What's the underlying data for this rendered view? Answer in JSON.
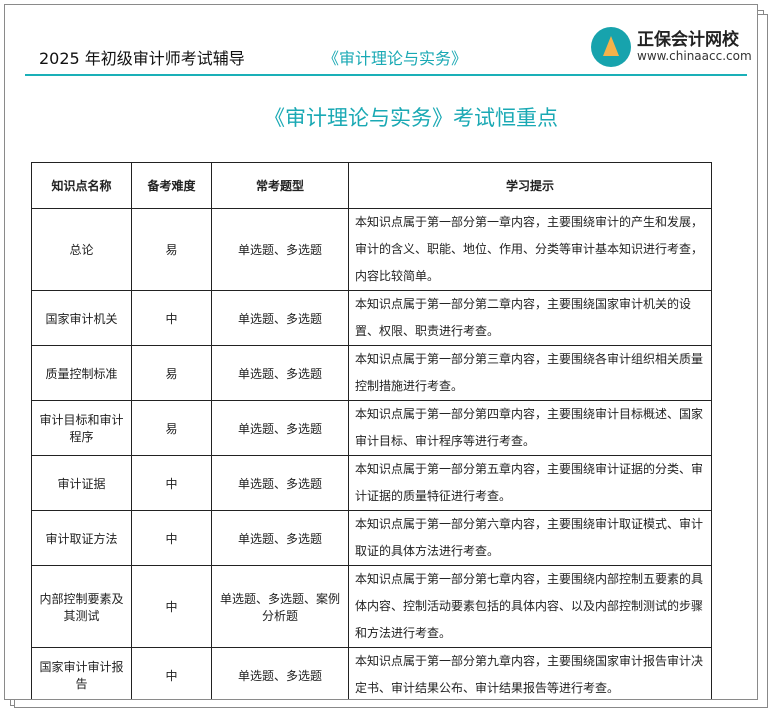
{
  "header": {
    "left": "2025 年初级审计师考试辅导",
    "center": "《审计理论与实务》",
    "logo_name": "正保会计网校",
    "logo_url": "www.chinaacc.com"
  },
  "title": "《审计理论与实务》考试恒重点",
  "table": {
    "headers": [
      "知识点名称",
      "备考难度",
      "常考题型",
      "学习提示"
    ],
    "rows": [
      {
        "name": "总论",
        "level": "易",
        "type": "单选题、多选题",
        "tip": "本知识点属于第一部分第一章内容，主要围绕审计的产生和发展，审计的含义、职能、地位、作用、分类等审计基本知识进行考查，内容比较简单。"
      },
      {
        "name": "国家审计机关",
        "level": "中",
        "type": "单选题、多选题",
        "tip": "本知识点属于第一部分第二章内容，主要围绕国家审计机关的设置、权限、职责进行考查。"
      },
      {
        "name": "质量控制标准",
        "level": "易",
        "type": "单选题、多选题",
        "tip": "本知识点属于第一部分第三章内容，主要围绕各审计组织相关质量控制措施进行考查。"
      },
      {
        "name": "审计目标和审计程序",
        "level": "易",
        "type": "单选题、多选题",
        "tip": "本知识点属于第一部分第四章内容，主要围绕审计目标概述、国家审计目标、审计程序等进行考查。"
      },
      {
        "name": "审计证据",
        "level": "中",
        "type": "单选题、多选题",
        "tip": "本知识点属于第一部分第五章内容，主要围绕审计证据的分类、审计证据的质量特征进行考查。"
      },
      {
        "name": "审计取证方法",
        "level": "中",
        "type": "单选题、多选题",
        "tip": "本知识点属于第一部分第六章内容，主要围绕审计取证模式、审计取证的具体方法进行考查。"
      },
      {
        "name": "内部控制要素及其测试",
        "level": "中",
        "type": "单选题、多选题、案例分析题",
        "tip": "本知识点属于第一部分第七章内容，主要围绕内部控制五要素的具体内容、控制活动要素包括的具体内容、以及内部控制测试的步骤和方法进行考查。"
      },
      {
        "name": "国家审计审计报告",
        "level": "中",
        "type": "单选题、多选题",
        "tip": "本知识点属于第一部分第九章内容，主要围绕国家审计报告审计决定书、审计结果公布、审计结果报告等进行考查。"
      }
    ]
  }
}
